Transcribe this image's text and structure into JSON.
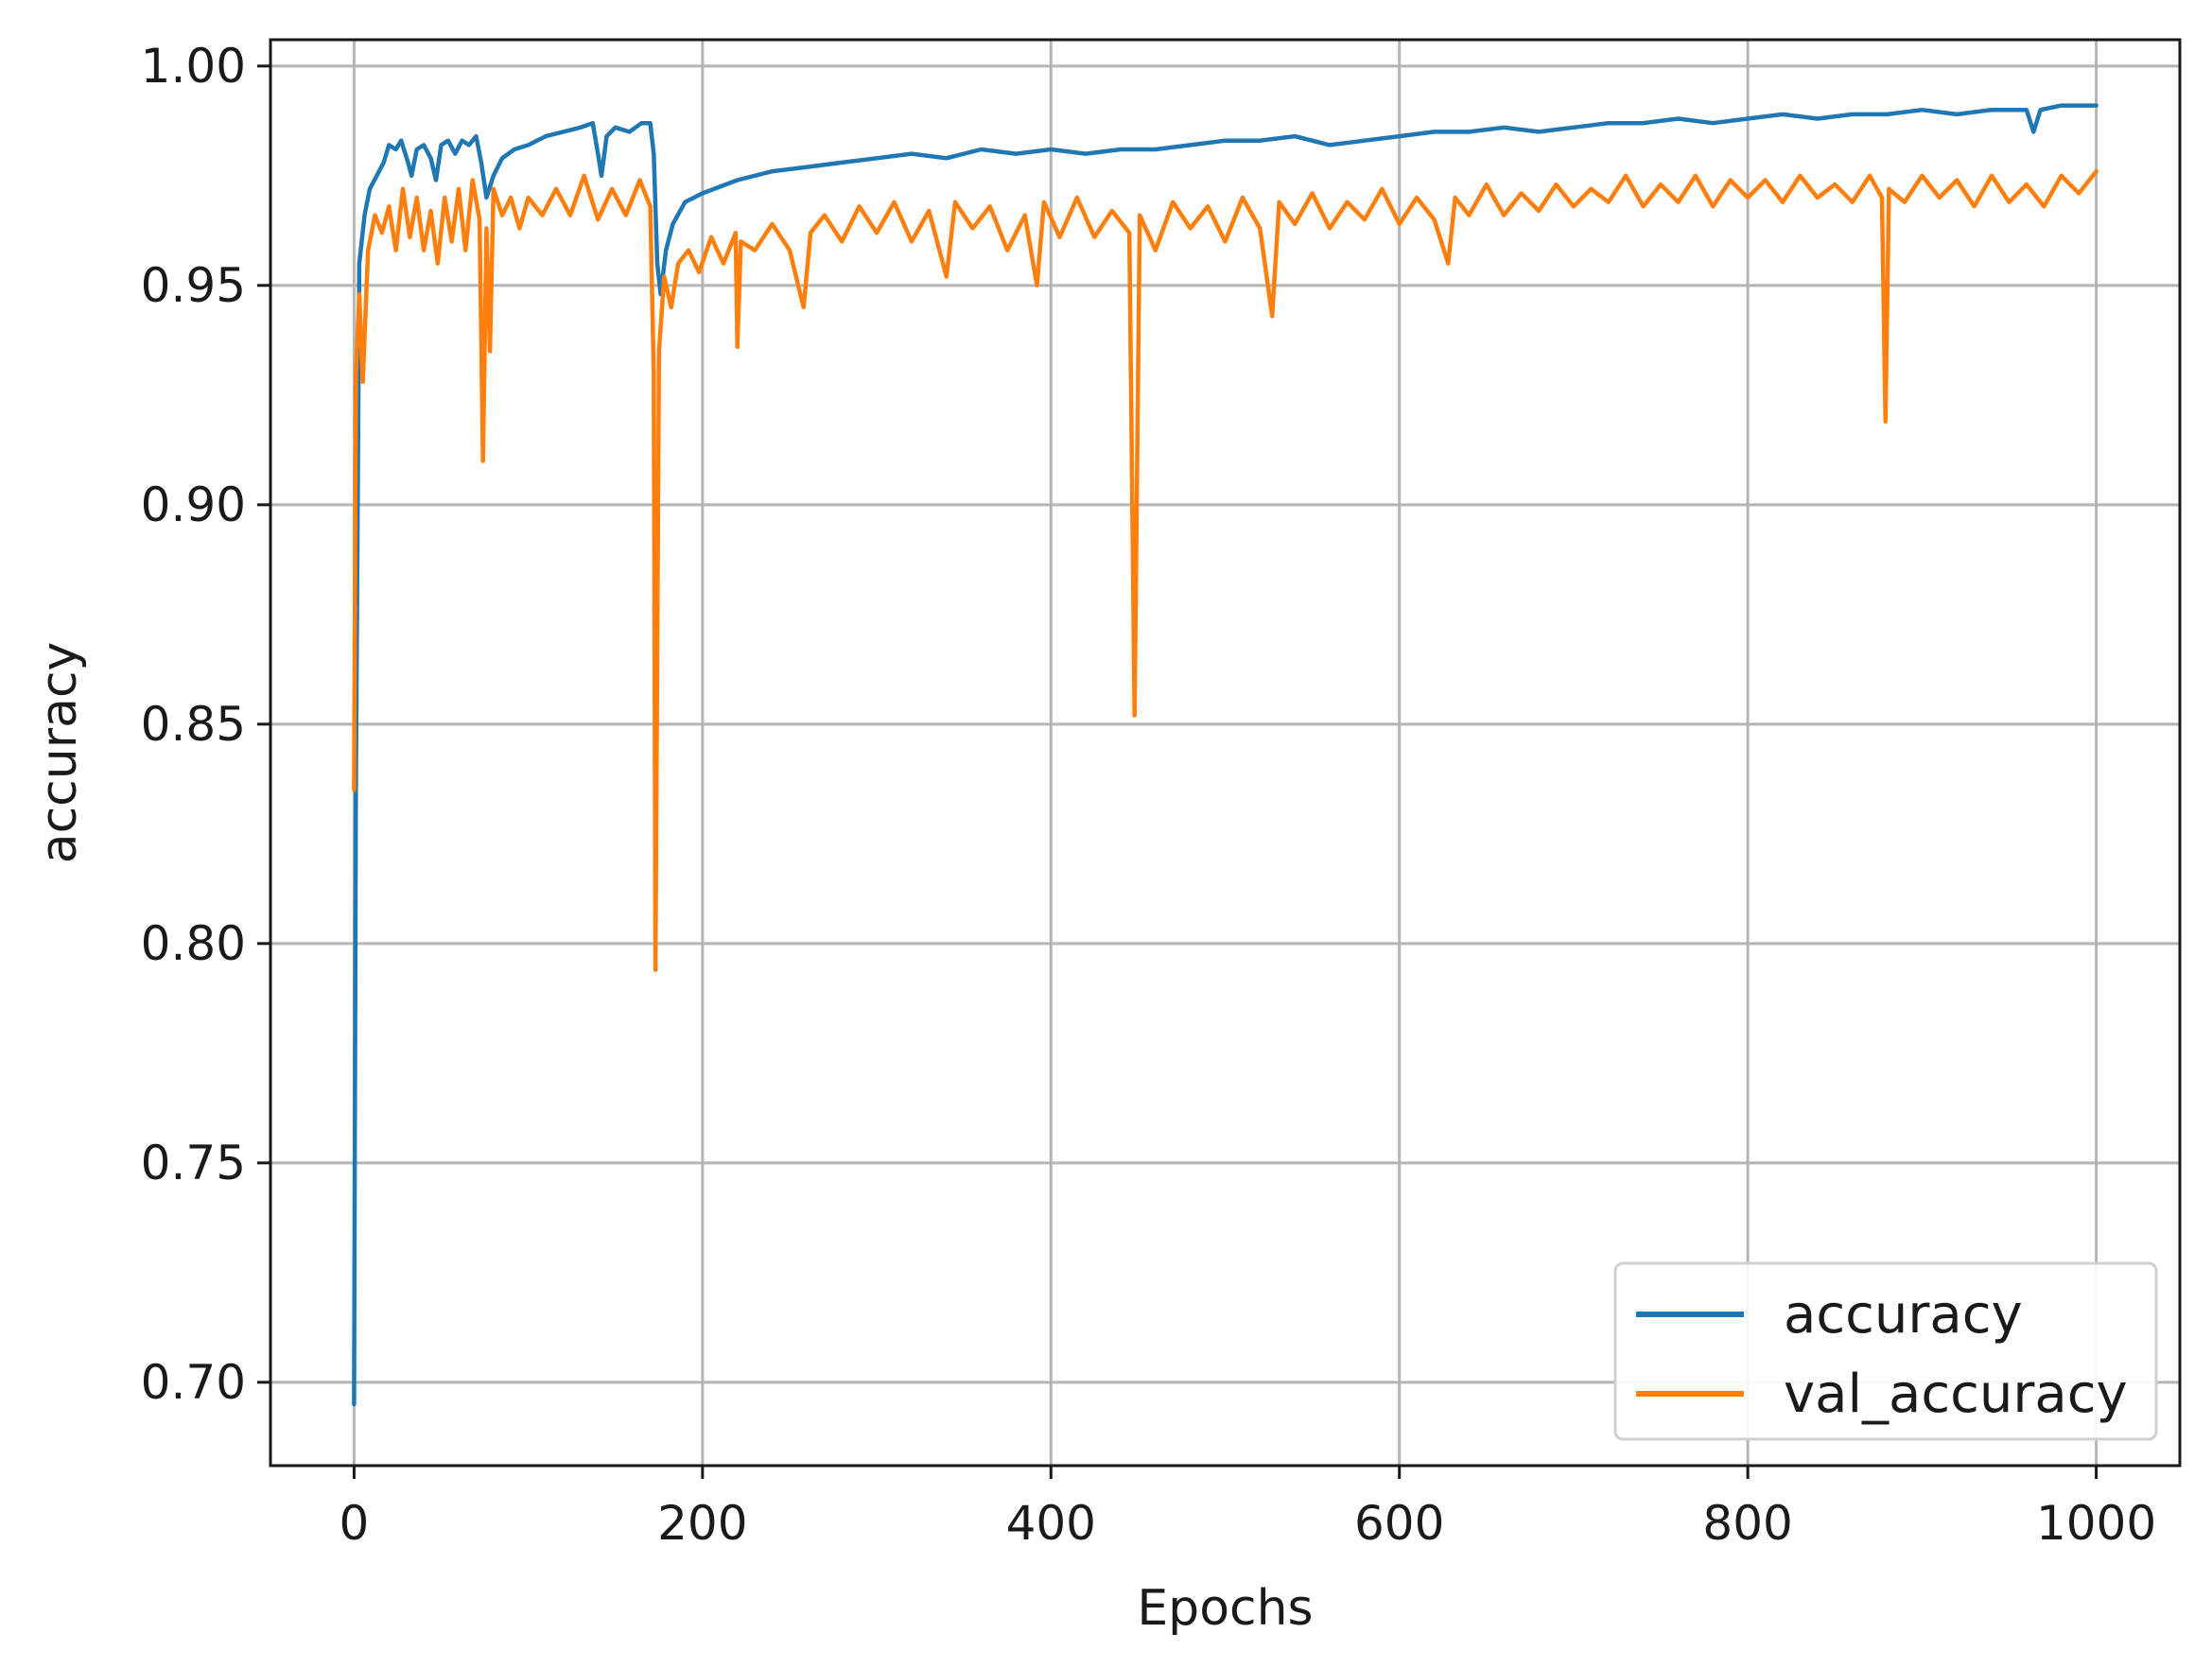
{
  "chart_data": {
    "type": "line",
    "title": "",
    "xlabel": "Epochs",
    "ylabel": "accuracy",
    "xlim": [
      -48,
      1048
    ],
    "ylim": [
      0.681,
      1.006
    ],
    "xticks": [
      0,
      200,
      400,
      600,
      800,
      1000
    ],
    "xtick_labels": [
      "0",
      "200",
      "400",
      "600",
      "800",
      "1000"
    ],
    "yticks": [
      0.7,
      0.75,
      0.8,
      0.85,
      0.9,
      0.95,
      1.0
    ],
    "ytick_labels": [
      "0.70",
      "0.75",
      "0.80",
      "0.85",
      "0.90",
      "0.95",
      "1.00"
    ],
    "grid": true,
    "legend_position": "lower-right",
    "series": [
      {
        "name": "accuracy",
        "color": "#1f77b4",
        "points": [
          [
            0,
            0.695
          ],
          [
            1,
            0.835
          ],
          [
            3,
            0.955
          ],
          [
            6,
            0.966
          ],
          [
            9,
            0.972
          ],
          [
            13,
            0.975
          ],
          [
            17,
            0.978
          ],
          [
            20,
            0.982
          ],
          [
            24,
            0.981
          ],
          [
            27,
            0.983
          ],
          [
            31,
            0.978
          ],
          [
            33,
            0.975
          ],
          [
            36,
            0.981
          ],
          [
            40,
            0.982
          ],
          [
            44,
            0.979
          ],
          [
            47,
            0.974
          ],
          [
            50,
            0.982
          ],
          [
            54,
            0.983
          ],
          [
            58,
            0.98
          ],
          [
            62,
            0.983
          ],
          [
            66,
            0.982
          ],
          [
            70,
            0.984
          ],
          [
            73,
            0.978
          ],
          [
            76,
            0.97
          ],
          [
            80,
            0.975
          ],
          [
            85,
            0.979
          ],
          [
            92,
            0.981
          ],
          [
            100,
            0.982
          ],
          [
            110,
            0.984
          ],
          [
            120,
            0.985
          ],
          [
            130,
            0.986
          ],
          [
            137,
            0.987
          ],
          [
            140,
            0.98
          ],
          [
            142,
            0.975
          ],
          [
            145,
            0.984
          ],
          [
            150,
            0.986
          ],
          [
            158,
            0.985
          ],
          [
            165,
            0.987
          ],
          [
            170,
            0.987
          ],
          [
            172,
            0.98
          ],
          [
            174,
            0.955
          ],
          [
            176,
            0.948
          ],
          [
            179,
            0.958
          ],
          [
            183,
            0.964
          ],
          [
            190,
            0.969
          ],
          [
            200,
            0.971
          ],
          [
            220,
            0.974
          ],
          [
            240,
            0.976
          ],
          [
            260,
            0.977
          ],
          [
            280,
            0.978
          ],
          [
            300,
            0.979
          ],
          [
            320,
            0.98
          ],
          [
            340,
            0.979
          ],
          [
            360,
            0.981
          ],
          [
            380,
            0.98
          ],
          [
            400,
            0.981
          ],
          [
            420,
            0.98
          ],
          [
            440,
            0.981
          ],
          [
            460,
            0.981
          ],
          [
            480,
            0.982
          ],
          [
            500,
            0.983
          ],
          [
            520,
            0.983
          ],
          [
            540,
            0.984
          ],
          [
            560,
            0.982
          ],
          [
            580,
            0.983
          ],
          [
            600,
            0.984
          ],
          [
            620,
            0.985
          ],
          [
            640,
            0.985
          ],
          [
            660,
            0.986
          ],
          [
            680,
            0.985
          ],
          [
            700,
            0.986
          ],
          [
            720,
            0.987
          ],
          [
            740,
            0.987
          ],
          [
            760,
            0.988
          ],
          [
            780,
            0.987
          ],
          [
            800,
            0.988
          ],
          [
            820,
            0.989
          ],
          [
            840,
            0.988
          ],
          [
            860,
            0.989
          ],
          [
            880,
            0.989
          ],
          [
            900,
            0.99
          ],
          [
            920,
            0.989
          ],
          [
            940,
            0.99
          ],
          [
            960,
            0.99
          ],
          [
            964,
            0.985
          ],
          [
            968,
            0.99
          ],
          [
            980,
            0.991
          ],
          [
            1000,
            0.991
          ]
        ]
      },
      {
        "name": "val_accuracy",
        "color": "#ff7f0e",
        "points": [
          [
            0,
            0.835
          ],
          [
            1,
            0.93
          ],
          [
            3,
            0.948
          ],
          [
            5,
            0.928
          ],
          [
            8,
            0.958
          ],
          [
            12,
            0.966
          ],
          [
            16,
            0.962
          ],
          [
            20,
            0.968
          ],
          [
            24,
            0.958
          ],
          [
            28,
            0.972
          ],
          [
            32,
            0.961
          ],
          [
            36,
            0.97
          ],
          [
            40,
            0.958
          ],
          [
            44,
            0.967
          ],
          [
            48,
            0.955
          ],
          [
            52,
            0.97
          ],
          [
            56,
            0.96
          ],
          [
            60,
            0.972
          ],
          [
            64,
            0.958
          ],
          [
            68,
            0.974
          ],
          [
            72,
            0.965
          ],
          [
            74,
            0.91
          ],
          [
            76,
            0.963
          ],
          [
            78,
            0.935
          ],
          [
            80,
            0.972
          ],
          [
            85,
            0.966
          ],
          [
            90,
            0.97
          ],
          [
            95,
            0.963
          ],
          [
            100,
            0.97
          ],
          [
            108,
            0.966
          ],
          [
            116,
            0.972
          ],
          [
            124,
            0.966
          ],
          [
            132,
            0.975
          ],
          [
            140,
            0.965
          ],
          [
            148,
            0.972
          ],
          [
            156,
            0.966
          ],
          [
            164,
            0.974
          ],
          [
            170,
            0.968
          ],
          [
            172,
            0.93
          ],
          [
            173,
            0.794
          ],
          [
            175,
            0.935
          ],
          [
            178,
            0.952
          ],
          [
            182,
            0.945
          ],
          [
            186,
            0.955
          ],
          [
            192,
            0.958
          ],
          [
            198,
            0.953
          ],
          [
            205,
            0.961
          ],
          [
            212,
            0.955
          ],
          [
            219,
            0.962
          ],
          [
            220,
            0.936
          ],
          [
            222,
            0.96
          ],
          [
            230,
            0.958
          ],
          [
            240,
            0.964
          ],
          [
            250,
            0.958
          ],
          [
            258,
            0.945
          ],
          [
            262,
            0.962
          ],
          [
            270,
            0.966
          ],
          [
            280,
            0.96
          ],
          [
            290,
            0.968
          ],
          [
            300,
            0.962
          ],
          [
            310,
            0.969
          ],
          [
            320,
            0.96
          ],
          [
            330,
            0.967
          ],
          [
            340,
            0.952
          ],
          [
            345,
            0.969
          ],
          [
            355,
            0.963
          ],
          [
            365,
            0.968
          ],
          [
            375,
            0.958
          ],
          [
            385,
            0.966
          ],
          [
            392,
            0.95
          ],
          [
            396,
            0.969
          ],
          [
            405,
            0.961
          ],
          [
            415,
            0.97
          ],
          [
            425,
            0.961
          ],
          [
            435,
            0.967
          ],
          [
            445,
            0.962
          ],
          [
            448,
            0.852
          ],
          [
            451,
            0.966
          ],
          [
            460,
            0.958
          ],
          [
            470,
            0.969
          ],
          [
            480,
            0.963
          ],
          [
            490,
            0.968
          ],
          [
            500,
            0.96
          ],
          [
            510,
            0.97
          ],
          [
            520,
            0.963
          ],
          [
            527,
            0.943
          ],
          [
            531,
            0.969
          ],
          [
            540,
            0.964
          ],
          [
            550,
            0.971
          ],
          [
            560,
            0.963
          ],
          [
            570,
            0.969
          ],
          [
            580,
            0.965
          ],
          [
            590,
            0.972
          ],
          [
            600,
            0.964
          ],
          [
            610,
            0.97
          ],
          [
            620,
            0.965
          ],
          [
            628,
            0.955
          ],
          [
            632,
            0.97
          ],
          [
            640,
            0.966
          ],
          [
            650,
            0.973
          ],
          [
            660,
            0.966
          ],
          [
            670,
            0.971
          ],
          [
            680,
            0.967
          ],
          [
            690,
            0.973
          ],
          [
            700,
            0.968
          ],
          [
            710,
            0.972
          ],
          [
            720,
            0.969
          ],
          [
            730,
            0.975
          ],
          [
            740,
            0.968
          ],
          [
            750,
            0.973
          ],
          [
            760,
            0.969
          ],
          [
            770,
            0.975
          ],
          [
            780,
            0.968
          ],
          [
            790,
            0.974
          ],
          [
            800,
            0.97
          ],
          [
            810,
            0.974
          ],
          [
            820,
            0.969
          ],
          [
            830,
            0.975
          ],
          [
            840,
            0.97
          ],
          [
            850,
            0.973
          ],
          [
            860,
            0.969
          ],
          [
            870,
            0.975
          ],
          [
            877,
            0.97
          ],
          [
            879,
            0.919
          ],
          [
            881,
            0.972
          ],
          [
            890,
            0.969
          ],
          [
            900,
            0.975
          ],
          [
            910,
            0.97
          ],
          [
            920,
            0.974
          ],
          [
            930,
            0.968
          ],
          [
            940,
            0.975
          ],
          [
            950,
            0.969
          ],
          [
            960,
            0.973
          ],
          [
            970,
            0.968
          ],
          [
            980,
            0.975
          ],
          [
            990,
            0.971
          ],
          [
            1000,
            0.976
          ]
        ]
      }
    ]
  }
}
